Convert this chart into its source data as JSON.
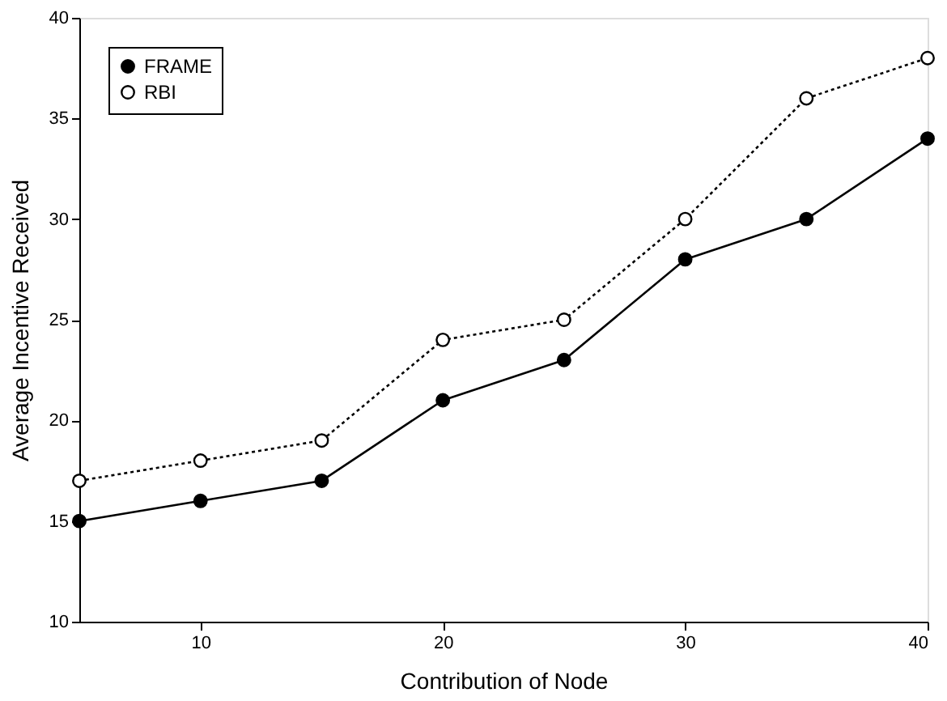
{
  "chart_data": {
    "type": "line",
    "xlabel": "Contribution of Node",
    "ylabel": "Average Incentive Received",
    "x": [
      5,
      10,
      15,
      20,
      25,
      30,
      35,
      40
    ],
    "series": [
      {
        "name": "FRAME",
        "color": "#000000",
        "values": [
          15,
          16,
          17,
          21,
          23,
          28,
          30,
          34
        ],
        "line_style": "solid",
        "marker": "circle"
      },
      {
        "name": "RBI",
        "color": "#000000",
        "values": [
          17,
          18,
          19,
          24,
          25,
          30,
          36,
          38
        ],
        "line_style": "dotted",
        "marker": "circle"
      }
    ],
    "xlim": [
      5,
      40
    ],
    "xticks": [
      10,
      20,
      30,
      40
    ],
    "ylim": [
      10,
      40
    ],
    "yticks": [
      10,
      15,
      20,
      25,
      30,
      35,
      40
    ],
    "grid": false,
    "legend": "top left"
  }
}
